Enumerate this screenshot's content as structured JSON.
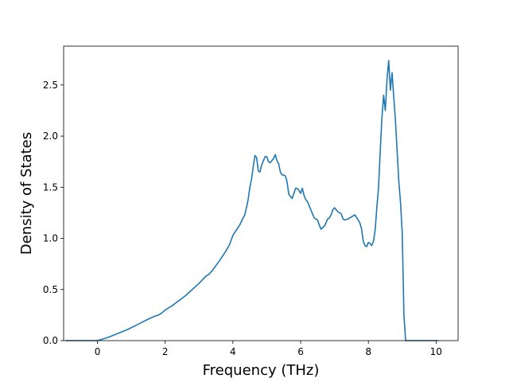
{
  "chart_data": {
    "type": "line",
    "title": "",
    "xlabel": "Frequency (THz)",
    "ylabel": "Density of States",
    "xlim": [
      -1.0,
      10.65
    ],
    "ylim": [
      0.0,
      2.88
    ],
    "xticks": [
      0,
      2,
      4,
      6,
      8,
      10
    ],
    "xtick_labels": [
      "0",
      "2",
      "4",
      "6",
      "8",
      "10"
    ],
    "yticks": [
      0.0,
      0.5,
      1.0,
      1.5,
      2.0,
      2.5
    ],
    "ytick_labels": [
      "0.0",
      "0.5",
      "1.0",
      "1.5",
      "2.0",
      "2.5"
    ],
    "grid": false,
    "legend": "none",
    "line_color": "#1f77b4",
    "series": [
      {
        "x": [
          -0.92,
          -0.5,
          0.0,
          0.3,
          0.6,
          0.9,
          1.2,
          1.5,
          1.7,
          1.8,
          1.9,
          2.0,
          2.2,
          2.4,
          2.6,
          2.8,
          3.0,
          3.2,
          3.3,
          3.4,
          3.6,
          3.8,
          3.9,
          4.0,
          4.1,
          4.2,
          4.3,
          4.35,
          4.4,
          4.45,
          4.5,
          4.55,
          4.6,
          4.65,
          4.7,
          4.75,
          4.8,
          4.85,
          4.9,
          4.95,
          5.0,
          5.05,
          5.1,
          5.15,
          5.2,
          5.25,
          5.3,
          5.35,
          5.4,
          5.45,
          5.5,
          5.55,
          5.6,
          5.65,
          5.7,
          5.75,
          5.8,
          5.85,
          5.9,
          5.95,
          6.0,
          6.05,
          6.1,
          6.15,
          6.2,
          6.3,
          6.4,
          6.5,
          6.55,
          6.6,
          6.7,
          6.8,
          6.85,
          6.9,
          6.95,
          7.0,
          7.05,
          7.1,
          7.2,
          7.25,
          7.3,
          7.4,
          7.5,
          7.6,
          7.7,
          7.75,
          7.8,
          7.85,
          7.9,
          7.95,
          8.0,
          8.05,
          8.1,
          8.15,
          8.2,
          8.25,
          8.3,
          8.35,
          8.4,
          8.45,
          8.5,
          8.55,
          8.6,
          8.65,
          8.7,
          8.75,
          8.8,
          8.85,
          8.9,
          8.95,
          9.0,
          9.05,
          9.1,
          9.12,
          9.15,
          9.2,
          9.4,
          9.6,
          9.8,
          10.05
        ],
        "y": [
          0.0,
          0.0,
          0.0,
          0.03,
          0.07,
          0.11,
          0.16,
          0.21,
          0.24,
          0.25,
          0.27,
          0.3,
          0.34,
          0.39,
          0.44,
          0.5,
          0.56,
          0.63,
          0.65,
          0.69,
          0.78,
          0.88,
          0.94,
          1.03,
          1.08,
          1.13,
          1.2,
          1.23,
          1.3,
          1.38,
          1.5,
          1.58,
          1.7,
          1.81,
          1.79,
          1.66,
          1.65,
          1.72,
          1.76,
          1.8,
          1.8,
          1.75,
          1.74,
          1.76,
          1.78,
          1.82,
          1.76,
          1.73,
          1.65,
          1.62,
          1.62,
          1.61,
          1.55,
          1.43,
          1.41,
          1.39,
          1.44,
          1.49,
          1.49,
          1.47,
          1.44,
          1.49,
          1.42,
          1.38,
          1.36,
          1.28,
          1.2,
          1.18,
          1.13,
          1.09,
          1.12,
          1.19,
          1.2,
          1.23,
          1.28,
          1.3,
          1.28,
          1.26,
          1.24,
          1.19,
          1.18,
          1.19,
          1.21,
          1.23,
          1.18,
          1.15,
          1.09,
          0.97,
          0.93,
          0.92,
          0.96,
          0.95,
          0.93,
          0.97,
          1.08,
          1.3,
          1.5,
          1.85,
          2.18,
          2.4,
          2.25,
          2.55,
          2.74,
          2.45,
          2.62,
          2.38,
          2.15,
          1.85,
          1.55,
          1.35,
          1.05,
          0.25,
          0.0,
          0.0,
          0.0,
          0.0,
          0.0,
          0.0,
          0.0,
          0.0
        ]
      }
    ]
  }
}
